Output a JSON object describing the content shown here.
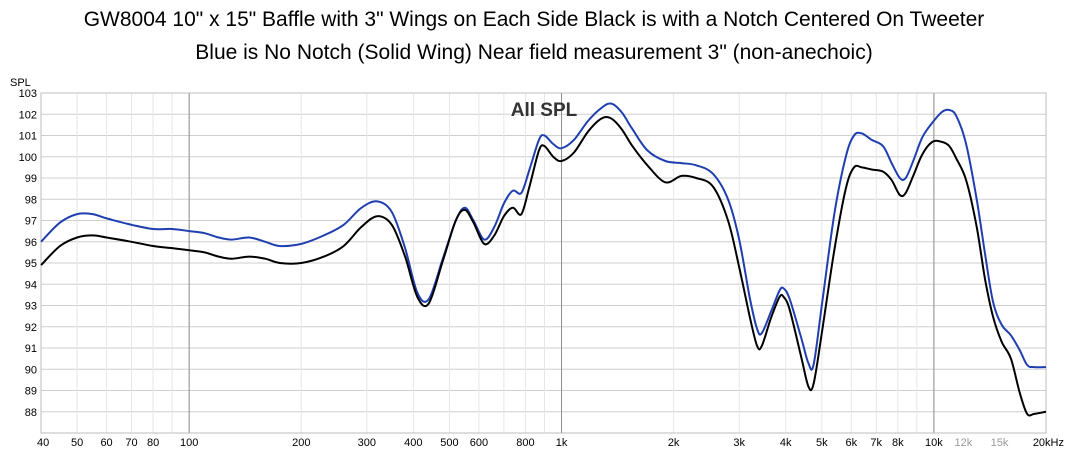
{
  "chart_data": {
    "type": "line",
    "title_line1": "GW8004 10\" x 15\" Baffle with 3\" Wings on Each Side Black is with a Notch Centered On Tweeter",
    "title_line2": "Blue is No Notch (Solid Wing) Near field measurement 3\" (non-anechoic)",
    "inner_label": "All SPL",
    "ylabel": "SPL",
    "x_scale": "log",
    "xlim": [
      40,
      20000
    ],
    "ylim": [
      87,
      103
    ],
    "y_ticks": [
      88,
      89,
      90,
      91,
      92,
      93,
      94,
      95,
      96,
      97,
      98,
      99,
      100,
      101,
      102,
      103
    ],
    "x_ticks": [
      {
        "value": 40,
        "label": "40"
      },
      {
        "value": 50,
        "label": "50"
      },
      {
        "value": 60,
        "label": "60"
      },
      {
        "value": 70,
        "label": "70"
      },
      {
        "value": 80,
        "label": "80"
      },
      {
        "value": 100,
        "label": "100"
      },
      {
        "value": 200,
        "label": "200"
      },
      {
        "value": 300,
        "label": "300"
      },
      {
        "value": 400,
        "label": "400"
      },
      {
        "value": 500,
        "label": "500"
      },
      {
        "value": 600,
        "label": "600"
      },
      {
        "value": 800,
        "label": "800"
      },
      {
        "value": 1000,
        "label": "1k"
      },
      {
        "value": 2000,
        "label": "2k"
      },
      {
        "value": 3000,
        "label": "3k"
      },
      {
        "value": 4000,
        "label": "4k"
      },
      {
        "value": 5000,
        "label": "5k"
      },
      {
        "value": 6000,
        "label": "6k"
      },
      {
        "value": 7000,
        "label": "7k"
      },
      {
        "value": 8000,
        "label": "8k"
      },
      {
        "value": 10000,
        "label": "10k"
      },
      {
        "value": 12000,
        "label": "12k"
      },
      {
        "value": 15000,
        "label": "15k"
      },
      {
        "value": 20000,
        "label": "20kHz"
      }
    ],
    "grid": true,
    "series": [
      {
        "color": "#1f3fb0",
        "points": [
          [
            40,
            96.0
          ],
          [
            45,
            96.9
          ],
          [
            50,
            97.3
          ],
          [
            55,
            97.3
          ],
          [
            60,
            97.1
          ],
          [
            70,
            96.8
          ],
          [
            80,
            96.6
          ],
          [
            90,
            96.6
          ],
          [
            100,
            96.5
          ],
          [
            110,
            96.4
          ],
          [
            120,
            96.2
          ],
          [
            130,
            96.1
          ],
          [
            145,
            96.2
          ],
          [
            160,
            96.0
          ],
          [
            175,
            95.8
          ],
          [
            200,
            95.9
          ],
          [
            230,
            96.3
          ],
          [
            260,
            96.8
          ],
          [
            290,
            97.6
          ],
          [
            320,
            97.9
          ],
          [
            350,
            97.4
          ],
          [
            380,
            95.7
          ],
          [
            410,
            93.6
          ],
          [
            440,
            93.3
          ],
          [
            480,
            95.2
          ],
          [
            520,
            97.0
          ],
          [
            550,
            97.6
          ],
          [
            580,
            97.0
          ],
          [
            620,
            96.1
          ],
          [
            660,
            96.7
          ],
          [
            700,
            97.8
          ],
          [
            740,
            98.4
          ],
          [
            780,
            98.3
          ],
          [
            820,
            99.4
          ],
          [
            870,
            100.8
          ],
          [
            900,
            101.0
          ],
          [
            950,
            100.6
          ],
          [
            1000,
            100.4
          ],
          [
            1080,
            100.8
          ],
          [
            1180,
            101.7
          ],
          [
            1280,
            102.3
          ],
          [
            1360,
            102.5
          ],
          [
            1450,
            102.1
          ],
          [
            1550,
            101.3
          ],
          [
            1700,
            100.3
          ],
          [
            1900,
            99.8
          ],
          [
            2100,
            99.7
          ],
          [
            2300,
            99.6
          ],
          [
            2550,
            99.2
          ],
          [
            2800,
            98.0
          ],
          [
            3000,
            96.1
          ],
          [
            3200,
            93.4
          ],
          [
            3350,
            91.9
          ],
          [
            3450,
            91.7
          ],
          [
            3650,
            92.7
          ],
          [
            3850,
            93.7
          ],
          [
            3950,
            93.8
          ],
          [
            4100,
            93.3
          ],
          [
            4400,
            91.5
          ],
          [
            4600,
            90.3
          ],
          [
            4750,
            90.2
          ],
          [
            5000,
            93.0
          ],
          [
            5400,
            97.3
          ],
          [
            5800,
            100.0
          ],
          [
            6100,
            101.0
          ],
          [
            6400,
            101.1
          ],
          [
            6800,
            100.8
          ],
          [
            7300,
            100.5
          ],
          [
            7700,
            99.7
          ],
          [
            8100,
            99.0
          ],
          [
            8400,
            99.0
          ],
          [
            8800,
            99.8
          ],
          [
            9300,
            100.9
          ],
          [
            9900,
            101.6
          ],
          [
            10500,
            102.1
          ],
          [
            11000,
            102.2
          ],
          [
            11500,
            101.9
          ],
          [
            12200,
            100.6
          ],
          [
            13000,
            98.1
          ],
          [
            13700,
            95.5
          ],
          [
            14400,
            93.2
          ],
          [
            15200,
            92.1
          ],
          [
            16100,
            91.6
          ],
          [
            17000,
            90.9
          ],
          [
            17800,
            90.2
          ],
          [
            18600,
            90.1
          ],
          [
            20000,
            90.1
          ]
        ]
      },
      {
        "color": "#000000",
        "points": [
          [
            40,
            94.9
          ],
          [
            45,
            95.8
          ],
          [
            50,
            96.2
          ],
          [
            55,
            96.3
          ],
          [
            60,
            96.2
          ],
          [
            70,
            96.0
          ],
          [
            80,
            95.8
          ],
          [
            90,
            95.7
          ],
          [
            100,
            95.6
          ],
          [
            110,
            95.5
          ],
          [
            120,
            95.3
          ],
          [
            130,
            95.2
          ],
          [
            145,
            95.3
          ],
          [
            160,
            95.2
          ],
          [
            175,
            95.0
          ],
          [
            200,
            95.0
          ],
          [
            230,
            95.3
          ],
          [
            260,
            95.8
          ],
          [
            290,
            96.7
          ],
          [
            320,
            97.2
          ],
          [
            350,
            96.8
          ],
          [
            380,
            95.3
          ],
          [
            410,
            93.4
          ],
          [
            440,
            93.1
          ],
          [
            480,
            95.1
          ],
          [
            520,
            97.0
          ],
          [
            550,
            97.5
          ],
          [
            580,
            96.9
          ],
          [
            620,
            95.9
          ],
          [
            660,
            96.3
          ],
          [
            700,
            97.2
          ],
          [
            740,
            97.6
          ],
          [
            780,
            97.3
          ],
          [
            820,
            98.6
          ],
          [
            870,
            100.3
          ],
          [
            900,
            100.5
          ],
          [
            950,
            100.0
          ],
          [
            1000,
            99.8
          ],
          [
            1080,
            100.2
          ],
          [
            1180,
            101.2
          ],
          [
            1280,
            101.8
          ],
          [
            1360,
            101.8
          ],
          [
            1450,
            101.3
          ],
          [
            1550,
            100.5
          ],
          [
            1700,
            99.6
          ],
          [
            1900,
            98.8
          ],
          [
            2100,
            99.1
          ],
          [
            2300,
            99.0
          ],
          [
            2550,
            98.6
          ],
          [
            2800,
            97.0
          ],
          [
            3000,
            94.8
          ],
          [
            3200,
            92.5
          ],
          [
            3350,
            91.1
          ],
          [
            3450,
            91.1
          ],
          [
            3650,
            92.4
          ],
          [
            3850,
            93.4
          ],
          [
            3950,
            93.4
          ],
          [
            4100,
            92.8
          ],
          [
            4400,
            90.6
          ],
          [
            4600,
            89.2
          ],
          [
            4750,
            89.3
          ],
          [
            5000,
            91.7
          ],
          [
            5400,
            95.6
          ],
          [
            5800,
            98.5
          ],
          [
            6100,
            99.5
          ],
          [
            6400,
            99.5
          ],
          [
            6800,
            99.4
          ],
          [
            7300,
            99.3
          ],
          [
            7700,
            98.9
          ],
          [
            8100,
            98.2
          ],
          [
            8400,
            98.3
          ],
          [
            8800,
            99.1
          ],
          [
            9300,
            100.1
          ],
          [
            9900,
            100.7
          ],
          [
            10500,
            100.7
          ],
          [
            11000,
            100.5
          ],
          [
            11500,
            99.9
          ],
          [
            12200,
            98.9
          ],
          [
            13000,
            96.8
          ],
          [
            13700,
            94.3
          ],
          [
            14400,
            92.5
          ],
          [
            15200,
            91.3
          ],
          [
            16100,
            90.5
          ],
          [
            17000,
            88.9
          ],
          [
            17800,
            87.9
          ],
          [
            18600,
            87.9
          ],
          [
            20000,
            88.0
          ]
        ]
      }
    ]
  }
}
